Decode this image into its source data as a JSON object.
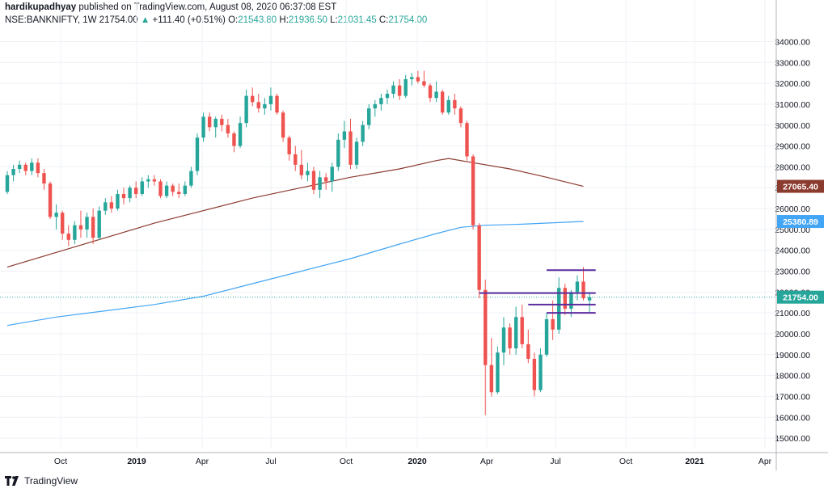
{
  "header": {
    "author": "hardikupadhyay",
    "published_text": "published on TradingView.com, August 08, 2020 06:37:08 EST",
    "symbol": "NSE:BANKNIFTY, 1W",
    "last": "21754.00",
    "change": "+111.40 (+0.51%)",
    "o_label": "O:",
    "o_value": "21543.80",
    "h_label": "H:",
    "h_value": "21936.50",
    "l_label": "L:",
    "l_value": "21031.45",
    "c_label": "C:",
    "c_value": "21754.00"
  },
  "footer": {
    "brand": "TradingView"
  },
  "colors": {
    "up": "#26a69a",
    "down": "#ef5350",
    "ma_long": "#8b3a2e",
    "ma_short": "#42a5f5",
    "levels": "#5b2c9f",
    "last_line": "#26a69a"
  },
  "chart_data": {
    "type": "candlestick",
    "price_axis_ticks": [
      "34000.00",
      "33000.00",
      "32000.00",
      "31000.00",
      "30000.00",
      "29000.00",
      "28000.00",
      "27000.00",
      "26000.00",
      "25000.00",
      "24000.00",
      "23000.00",
      "22000.00",
      "21000.00",
      "20000.00",
      "19000.00",
      "18000.00",
      "17000.00",
      "16000.00",
      "15000.00"
    ],
    "ylim": [
      14500,
      34600
    ],
    "time_axis_ticks": [
      "Oct",
      "2019",
      "Apr",
      "Jul",
      "Oct",
      "2020",
      "Apr",
      "Jul",
      "Oct",
      "2021",
      "Apr"
    ],
    "price_labels": [
      {
        "text": "27065.40",
        "value": 27065.4,
        "color": "#8b3a2e"
      },
      {
        "text": "25380.89",
        "value": 25380.89,
        "color": "#42a5f5"
      },
      {
        "text": "21754.00",
        "value": 21754.0,
        "color": "#26a69a"
      }
    ],
    "candles": [
      [
        26800,
        27800,
        26700,
        27600
      ],
      [
        27600,
        28100,
        27300,
        27900
      ],
      [
        27900,
        28300,
        27700,
        28100
      ],
      [
        28100,
        28200,
        27600,
        27800
      ],
      [
        27800,
        28400,
        27600,
        28200
      ],
      [
        28200,
        28400,
        27500,
        27700
      ],
      [
        27700,
        27900,
        26900,
        27200
      ],
      [
        27200,
        27300,
        25500,
        25600
      ],
      [
        25600,
        26200,
        25000,
        25800
      ],
      [
        25800,
        25900,
        24500,
        24800
      ],
      [
        24800,
        25200,
        24200,
        24500
      ],
      [
        24500,
        25400,
        24300,
        25200
      ],
      [
        25200,
        25900,
        24600,
        25000
      ],
      [
        25000,
        25800,
        24600,
        25600
      ],
      [
        25600,
        26000,
        24300,
        24600
      ],
      [
        24600,
        26100,
        24500,
        25900
      ],
      [
        25900,
        26500,
        25700,
        26300
      ],
      [
        26300,
        26600,
        25800,
        26000
      ],
      [
        26000,
        26900,
        25900,
        26700
      ],
      [
        26700,
        27000,
        26200,
        26500
      ],
      [
        26500,
        27100,
        26300,
        27000
      ],
      [
        27000,
        27300,
        26500,
        26700
      ],
      [
        26700,
        27500,
        26600,
        27300
      ],
      [
        27300,
        27600,
        27000,
        27400
      ],
      [
        27400,
        27600,
        27100,
        27300
      ],
      [
        27300,
        27400,
        26500,
        26600
      ],
      [
        26600,
        27300,
        26500,
        27100
      ],
      [
        27100,
        27200,
        26600,
        26800
      ],
      [
        26800,
        27200,
        26500,
        26700
      ],
      [
        26700,
        27300,
        26600,
        27100
      ],
      [
        27100,
        28000,
        27000,
        27800
      ],
      [
        27800,
        29600,
        27600,
        29400
      ],
      [
        29400,
        30600,
        29200,
        30400
      ],
      [
        30400,
        30600,
        29700,
        29900
      ],
      [
        29900,
        30400,
        29400,
        30300
      ],
      [
        30300,
        30500,
        29700,
        30000
      ],
      [
        30000,
        30300,
        29400,
        29600
      ],
      [
        29600,
        29700,
        28700,
        29000
      ],
      [
        29000,
        30400,
        28900,
        30100
      ],
      [
        30100,
        31700,
        29900,
        31400
      ],
      [
        31400,
        31800,
        30900,
        31100
      ],
      [
        31100,
        31500,
        30600,
        30800
      ],
      [
        30800,
        31300,
        30500,
        31000
      ],
      [
        31000,
        31800,
        30700,
        31400
      ],
      [
        31400,
        31500,
        30500,
        30600
      ],
      [
        30600,
        30700,
        29200,
        29400
      ],
      [
        29400,
        29500,
        28300,
        28600
      ],
      [
        28600,
        29000,
        27800,
        28100
      ],
      [
        28100,
        28800,
        27400,
        27600
      ],
      [
        27600,
        28200,
        27300,
        27800
      ],
      [
        27800,
        28000,
        26700,
        26900
      ],
      [
        26900,
        27800,
        26500,
        27500
      ],
      [
        27500,
        27700,
        26900,
        27300
      ],
      [
        27300,
        28200,
        26800,
        28000
      ],
      [
        28000,
        29600,
        27800,
        29300
      ],
      [
        29300,
        30200,
        28900,
        29700
      ],
      [
        29700,
        30300,
        27900,
        28100
      ],
      [
        28100,
        29400,
        27900,
        29200
      ],
      [
        29200,
        30200,
        29000,
        30000
      ],
      [
        30000,
        31000,
        29800,
        30800
      ],
      [
        30800,
        31200,
        30400,
        31000
      ],
      [
        31000,
        31500,
        30700,
        31300
      ],
      [
        31300,
        31700,
        31000,
        31500
      ],
      [
        31500,
        32100,
        31300,
        31900
      ],
      [
        31900,
        32200,
        31200,
        31400
      ],
      [
        31400,
        32400,
        31300,
        32200
      ],
      [
        32200,
        32500,
        31900,
        32300
      ],
      [
        32300,
        32600,
        32000,
        32100
      ],
      [
        32100,
        32600,
        31800,
        31900
      ],
      [
        31900,
        32000,
        31100,
        31300
      ],
      [
        31300,
        32100,
        31100,
        31600
      ],
      [
        31600,
        31700,
        30500,
        30600
      ],
      [
        30600,
        31400,
        30500,
        31200
      ],
      [
        31200,
        31500,
        30500,
        30800
      ],
      [
        30800,
        30900,
        29900,
        30100
      ],
      [
        30100,
        30200,
        28300,
        28500
      ],
      [
        28500,
        28600,
        25000,
        25200
      ],
      [
        25200,
        25300,
        21700,
        22100
      ],
      [
        22100,
        22600,
        16100,
        18500
      ],
      [
        18500,
        19800,
        17000,
        17200
      ],
      [
        17200,
        19400,
        17100,
        19100
      ],
      [
        19100,
        20800,
        18500,
        20300
      ],
      [
        20300,
        20500,
        19000,
        19300
      ],
      [
        19300,
        21300,
        19000,
        20800
      ],
      [
        20800,
        21400,
        19300,
        19500
      ],
      [
        19500,
        20200,
        18600,
        18800
      ],
      [
        18800,
        19100,
        17000,
        17300
      ],
      [
        17300,
        19300,
        17200,
        19000
      ],
      [
        19000,
        21000,
        18900,
        20700
      ],
      [
        20700,
        21600,
        19700,
        20200
      ],
      [
        20200,
        22700,
        20000,
        22200
      ],
      [
        22200,
        22400,
        20900,
        21200
      ],
      [
        21200,
        22100,
        20800,
        22000
      ],
      [
        22000,
        22800,
        21600,
        22500
      ],
      [
        22500,
        23200,
        21600,
        21700
      ],
      [
        21600,
        22000,
        21000,
        21754
      ]
    ],
    "moving_averages": [
      {
        "color": "#8b3a2e",
        "points": [
          [
            0,
            23200
          ],
          [
            8,
            23900
          ],
          [
            16,
            24600
          ],
          [
            24,
            25300
          ],
          [
            32,
            25900
          ],
          [
            40,
            26500
          ],
          [
            48,
            27000
          ],
          [
            56,
            27500
          ],
          [
            64,
            27900
          ],
          [
            70,
            28300
          ],
          [
            72,
            28400
          ],
          [
            76,
            28200
          ],
          [
            82,
            27900
          ],
          [
            88,
            27500
          ],
          [
            94,
            27065.4
          ]
        ]
      },
      {
        "color": "#42a5f5",
        "points": [
          [
            0,
            20400
          ],
          [
            8,
            20800
          ],
          [
            16,
            21100
          ],
          [
            24,
            21400
          ],
          [
            32,
            21800
          ],
          [
            40,
            22400
          ],
          [
            48,
            23000
          ],
          [
            56,
            23600
          ],
          [
            64,
            24300
          ],
          [
            70,
            24800
          ],
          [
            74,
            25100
          ],
          [
            78,
            25200
          ],
          [
            84,
            25250
          ],
          [
            94,
            25380.89
          ]
        ]
      }
    ],
    "levels": [
      {
        "from": 77,
        "to": 96,
        "value": 21950
      },
      {
        "from": 85,
        "to": 96,
        "value": 21400
      },
      {
        "from": 88,
        "to": 96,
        "value": 21000
      },
      {
        "from": 88,
        "to": 96,
        "value": 23050
      }
    ]
  }
}
